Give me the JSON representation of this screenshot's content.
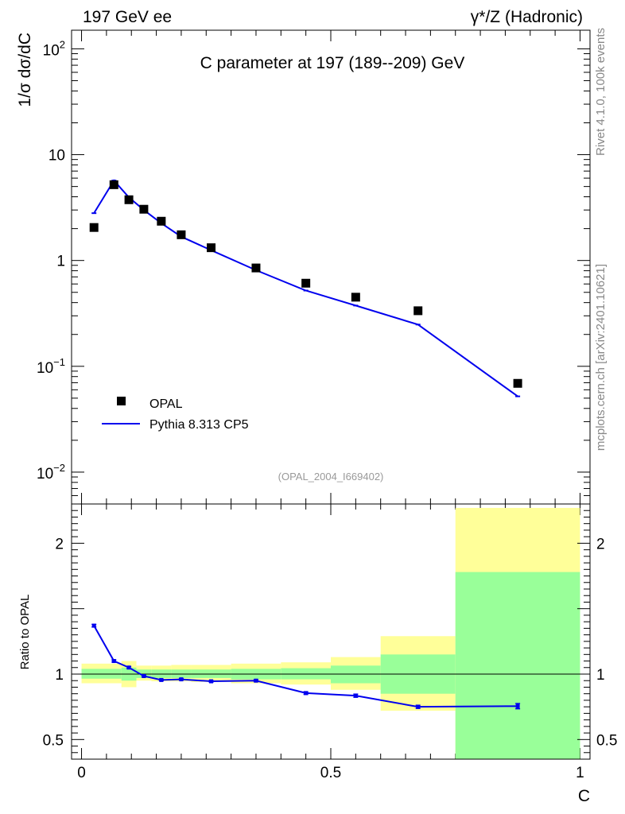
{
  "header": {
    "left": "197 GeV ee",
    "right": "γ*/Z (Hadronic)"
  },
  "side_labels": {
    "rivet": "Rivet 4.1.0,  100k events",
    "mcplots": "mcplots.cern.ch [arXiv:2401.10621]"
  },
  "chart_data": {
    "type": "line",
    "title": "C parameter at 197 (189--209) GeV",
    "watermark": "(OPAL_2004_I669402)",
    "xlabel": "C",
    "ylabel": "1/σ  dσ/dC",
    "ratio_ylabel": "Ratio to OPAL",
    "xlim": [
      -0.02,
      1.02
    ],
    "ylim_log": [
      0.005,
      150
    ],
    "ratio_ylim": [
      0.35,
      2.3
    ],
    "legend": {
      "position": "bottom-left",
      "entries": [
        {
          "label": "OPAL",
          "marker": "square",
          "color": "#000000"
        },
        {
          "label": "Pythia 8.313 CP5",
          "marker": "line",
          "color": "#0000ee"
        }
      ]
    },
    "x_ticks": [
      {
        "value": 0,
        "label": "0"
      },
      {
        "value": 0.5,
        "label": "0.5"
      },
      {
        "value": 1,
        "label": "1"
      }
    ],
    "y_ticks_main": [
      {
        "value": 100,
        "base": "10",
        "exp": "2"
      },
      {
        "value": 10,
        "base": "10",
        "exp": ""
      },
      {
        "value": 1,
        "base": "1",
        "exp": ""
      },
      {
        "value": 0.1,
        "base": "10",
        "exp": "−1"
      },
      {
        "value": 0.01,
        "base": "10",
        "exp": "−2"
      }
    ],
    "y_ticks_ratio": [
      {
        "value": 2,
        "label": "2"
      },
      {
        "value": 1,
        "label": "1"
      },
      {
        "value": 0.5,
        "label": "0.5"
      }
    ],
    "series": [
      {
        "name": "OPAL",
        "type": "scatter",
        "color": "#000000",
        "x": [
          0.025,
          0.065,
          0.095,
          0.125,
          0.16,
          0.2,
          0.26,
          0.35,
          0.45,
          0.55,
          0.675,
          0.875
        ],
        "values": [
          2.05,
          5.2,
          3.75,
          3.05,
          2.35,
          1.75,
          1.32,
          0.85,
          0.61,
          0.45,
          0.335,
          0.069
        ]
      },
      {
        "name": "Pythia 8.313 CP5",
        "type": "line",
        "color": "#0000ee",
        "x": [
          0.025,
          0.065,
          0.095,
          0.125,
          0.16,
          0.2,
          0.26,
          0.35,
          0.45,
          0.55,
          0.675,
          0.875
        ],
        "values": [
          2.8,
          5.7,
          3.95,
          3.0,
          2.25,
          1.68,
          1.25,
          0.81,
          0.52,
          0.375,
          0.248,
          0.052
        ]
      }
    ],
    "ratio": {
      "name": "Pythia 8.313 CP5 / OPAL",
      "x": [
        0.025,
        0.065,
        0.095,
        0.125,
        0.16,
        0.2,
        0.26,
        0.35,
        0.45,
        0.55,
        0.675,
        0.875
      ],
      "values": [
        1.37,
        1.1,
        1.05,
        0.985,
        0.955,
        0.96,
        0.945,
        0.95,
        0.855,
        0.835,
        0.75,
        0.755
      ],
      "errors": [
        0.01,
        0.008,
        0.008,
        0.006,
        0.006,
        0.006,
        0.006,
        0.008,
        0.01,
        0.012,
        0.012,
        0.02
      ],
      "bands": [
        {
          "x0": 0.0,
          "x1": 0.08,
          "inner_lo": 0.965,
          "inner_hi": 1.04,
          "outer_lo": 0.93,
          "outer_hi": 1.08
        },
        {
          "x0": 0.08,
          "x1": 0.11,
          "inner_lo": 0.95,
          "inner_hi": 1.05,
          "outer_lo": 0.9,
          "outer_hi": 1.1
        },
        {
          "x0": 0.11,
          "x1": 0.14,
          "inner_lo": 0.97,
          "inner_hi": 1.035,
          "outer_lo": 0.95,
          "outer_hi": 1.065
        },
        {
          "x0": 0.14,
          "x1": 0.18,
          "inner_lo": 0.97,
          "inner_hi": 1.035,
          "outer_lo": 0.945,
          "outer_hi": 1.065
        },
        {
          "x0": 0.18,
          "x1": 0.22,
          "inner_lo": 0.97,
          "inner_hi": 1.035,
          "outer_lo": 0.945,
          "outer_hi": 1.07
        },
        {
          "x0": 0.22,
          "x1": 0.3,
          "inner_lo": 0.97,
          "inner_hi": 1.035,
          "outer_lo": 0.94,
          "outer_hi": 1.07
        },
        {
          "x0": 0.3,
          "x1": 0.4,
          "inner_lo": 0.96,
          "inner_hi": 1.04,
          "outer_lo": 0.93,
          "outer_hi": 1.08
        },
        {
          "x0": 0.4,
          "x1": 0.5,
          "inner_lo": 0.96,
          "inner_hi": 1.045,
          "outer_lo": 0.92,
          "outer_hi": 1.09
        },
        {
          "x0": 0.5,
          "x1": 0.6,
          "inner_lo": 0.93,
          "inner_hi": 1.065,
          "outer_lo": 0.88,
          "outer_hi": 1.13
        },
        {
          "x0": 0.6,
          "x1": 0.75,
          "inner_lo": 0.85,
          "inner_hi": 1.15,
          "outer_lo": 0.72,
          "outer_hi": 1.29
        },
        {
          "x0": 0.75,
          "x1": 1.0,
          "inner_lo": 0.34,
          "inner_hi": 1.78,
          "outer_lo": 0.34,
          "outer_hi": 2.27
        }
      ],
      "inner_color": "#99ff99",
      "outer_color": "#ffff99"
    }
  }
}
